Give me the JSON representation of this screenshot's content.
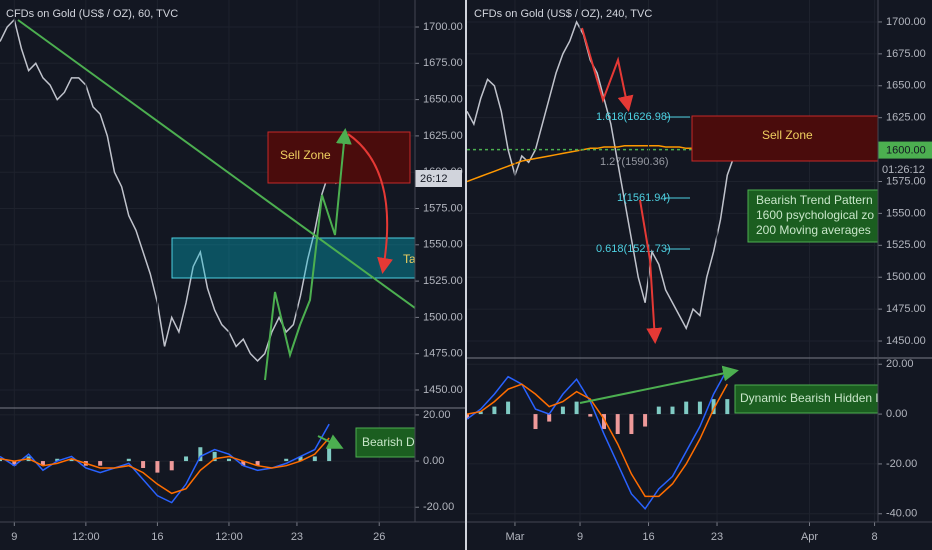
{
  "chart_data": [
    {
      "type": "line",
      "title": "CFDs on Gold (US$ / OZ), 60, TVC",
      "x": [
        0,
        1,
        2,
        3,
        4,
        5,
        6,
        7,
        8,
        9,
        10,
        11,
        12,
        13,
        14,
        15,
        16,
        17,
        18,
        19,
        20,
        21,
        22,
        23,
        24,
        25,
        26,
        27,
        28,
        29,
        30,
        31,
        32,
        33,
        34,
        35,
        36,
        37,
        38,
        39,
        40,
        41,
        42,
        43,
        44,
        45,
        46,
        47
      ],
      "series": [
        {
          "color": "#c0c3cc",
          "values": [
            1690,
            1700,
            1705,
            1685,
            1670,
            1675,
            1665,
            1660,
            1650,
            1655,
            1665,
            1665,
            1660,
            1645,
            1640,
            1625,
            1600,
            1590,
            1570,
            1560,
            1545,
            1530,
            1510,
            1480,
            1500,
            1490,
            1510,
            1535,
            1545,
            1520,
            1505,
            1495,
            1490,
            1480,
            1485,
            1475,
            1470,
            1475,
            1490,
            1500,
            1490,
            1495,
            1515,
            1540,
            1560,
            1585,
            1600,
            1592
          ]
        }
      ],
      "xlim": [
        0,
        58
      ],
      "ylim": [
        1437.6,
        1718.6
      ],
      "grid": true,
      "yticks": [
        {
          "value": 1450,
          "label": "1450.00"
        },
        {
          "value": 1475,
          "label": "1475.00"
        },
        {
          "value": 1500,
          "label": "1500.00"
        },
        {
          "value": 1525,
          "label": "1525.00"
        },
        {
          "value": 1550,
          "label": "1550.00"
        },
        {
          "value": 1575,
          "label": "1575.00"
        },
        {
          "value": 1600,
          "label": "1600.00"
        },
        {
          "value": 1625,
          "label": "1625.00"
        },
        {
          "value": 1650,
          "label": "1650.00"
        },
        {
          "value": 1675,
          "label": "1675.00"
        },
        {
          "value": 1700,
          "label": "1700.00"
        }
      ],
      "annotations": [
        "Sell Zone",
        "Ta",
        "26:12"
      ]
    },
    {
      "type": "macd",
      "x": [
        0,
        2,
        4,
        6,
        8,
        10,
        12,
        14,
        16,
        18,
        20,
        22,
        24,
        26,
        28,
        30,
        32,
        34,
        36,
        38,
        40,
        42,
        44,
        46
      ],
      "histogram": {
        "values": [
          1,
          -2,
          2,
          -2,
          1,
          1,
          -2,
          -2,
          0,
          1,
          -3,
          -5,
          -4,
          2,
          6,
          4,
          1,
          -2,
          -2,
          0,
          1,
          2,
          2,
          6
        ],
        "positive_color": "#80cbc4",
        "negative_color": "#ef9a9a"
      },
      "series": [
        {
          "color": "#2962ff",
          "values": [
            2,
            -2,
            3,
            -4,
            0,
            2,
            -3,
            -5,
            -3,
            -1,
            -8,
            -15,
            -18,
            -10,
            2,
            5,
            3,
            -2,
            -4,
            -3,
            -1,
            2,
            5,
            16
          ]
        },
        {
          "color": "#ff6d00",
          "values": [
            1,
            0,
            1,
            -2,
            -1,
            1,
            -1,
            -3,
            -3,
            -2,
            -5,
            -10,
            -14,
            -12,
            -4,
            1,
            2,
            0,
            -2,
            -3,
            -2,
            0,
            3,
            10
          ]
        }
      ],
      "xlim": [
        0,
        58
      ],
      "ylim": [
        -26.4,
        23
      ],
      "grid": true,
      "yticks": [
        {
          "value": -20,
          "label": "-20.00"
        },
        {
          "value": 0,
          "label": "0.00"
        },
        {
          "value": 20,
          "label": "20.00"
        }
      ],
      "xticks": [
        {
          "value": 2,
          "label": "9"
        },
        {
          "value": 12,
          "label": "12:00"
        },
        {
          "value": 22,
          "label": "16"
        },
        {
          "value": 32,
          "label": "12:00"
        },
        {
          "value": 41.5,
          "label": "23"
        },
        {
          "value": 53,
          "label": "26"
        }
      ],
      "annotations": [
        "Bearish D"
      ]
    },
    {
      "type": "line",
      "title": "CFDs on Gold (US$ / OZ), 240, TVC",
      "x": [
        0,
        1,
        2,
        3,
        4,
        5,
        6,
        7,
        8,
        9,
        10,
        11,
        12,
        13,
        14,
        15,
        16,
        17,
        18,
        19,
        20,
        21,
        22,
        23,
        24,
        25,
        26,
        27,
        28,
        29,
        30,
        31,
        32,
        33,
        34,
        35,
        36,
        37,
        38,
        39
      ],
      "series": [
        {
          "color": "#c0c3cc",
          "values": [
            1630,
            1620,
            1640,
            1655,
            1650,
            1630,
            1600,
            1580,
            1595,
            1590,
            1600,
            1620,
            1640,
            1660,
            1675,
            1685,
            1700,
            1690,
            1670,
            1660,
            1640,
            1620,
            1590,
            1560,
            1530,
            1500,
            1480,
            1520,
            1510,
            1490,
            1480,
            1470,
            1460,
            1475,
            1470,
            1500,
            1520,
            1545,
            1580,
            1595
          ]
        },
        {
          "color": "#ff9800",
          "values": [
            1575,
            1577,
            1579,
            1581,
            1583,
            1585,
            1587,
            1589,
            1591,
            1592,
            1593,
            1594,
            1595,
            1596,
            1597,
            1598,
            1599,
            1600,
            1601,
            1601,
            1602,
            1602,
            1602,
            1603,
            1603,
            1603,
            1603,
            1603,
            1603,
            1602,
            1602,
            1602,
            1601,
            1601,
            1601,
            1600,
            1600,
            1600,
            1599,
            1599
          ]
        }
      ],
      "xlim": [
        0,
        60
      ],
      "ylim": [
        1436.7,
        1717.2
      ],
      "grid": true,
      "price_line": {
        "value": 1600,
        "label": "1600.00",
        "color": "#4caf50"
      },
      "yticks": [
        {
          "value": 1450,
          "label": "1450.00"
        },
        {
          "value": 1475,
          "label": "1475.00"
        },
        {
          "value": 1500,
          "label": "1500.00"
        },
        {
          "value": 1525,
          "label": "1525.00"
        },
        {
          "value": 1550,
          "label": "1550.00"
        },
        {
          "value": 1575,
          "label": "1575.00"
        },
        {
          "value": 1625,
          "label": "1625.00"
        },
        {
          "value": 1650,
          "label": "1650.00"
        },
        {
          "value": 1675,
          "label": "1675.00"
        },
        {
          "value": 1700,
          "label": "1700.00"
        }
      ],
      "annotations": [
        "Sell Zone",
        "1.618(1626.98)",
        "1.27(1590.36)",
        "1(1561.94)",
        "0.618(1521.73)",
        "Bearish Trend Pattern",
        "1600 psychological zo",
        "200 Moving averages",
        "01:26:12"
      ]
    },
    {
      "type": "macd",
      "x": [
        0,
        2,
        4,
        6,
        8,
        10,
        12,
        14,
        16,
        18,
        20,
        22,
        24,
        26,
        28,
        30,
        32,
        34,
        36,
        38
      ],
      "histogram": {
        "values": [
          -2,
          1,
          3,
          5,
          0,
          -6,
          -3,
          3,
          5,
          -1,
          -6,
          -8,
          -8,
          -5,
          3,
          3,
          5,
          5,
          6,
          6
        ],
        "positive_color": "#80cbc4",
        "negative_color": "#ef9a9a"
      },
      "series": [
        {
          "color": "#2962ff",
          "values": [
            -2,
            2,
            8,
            15,
            12,
            2,
            0,
            8,
            14,
            5,
            -8,
            -20,
            -32,
            -38,
            -30,
            -25,
            -15,
            -5,
            8,
            18
          ]
        },
        {
          "color": "#ff6d00",
          "values": [
            0,
            1,
            5,
            10,
            12,
            8,
            3,
            5,
            9,
            6,
            -2,
            -12,
            -24,
            -33,
            -33,
            -28,
            -20,
            -10,
            2,
            12
          ]
        }
      ],
      "xlim": [
        0,
        60
      ],
      "ylim": [
        -43.3,
        22.5
      ],
      "grid": true,
      "yticks": [
        {
          "value": -40,
          "label": "-40.00"
        },
        {
          "value": -20,
          "label": "-20.00"
        },
        {
          "value": 0,
          "label": "0.00"
        },
        {
          "value": 20,
          "label": "20.00"
        }
      ],
      "xticks": [
        {
          "value": 7,
          "label": "Mar"
        },
        {
          "value": 16.5,
          "label": "9"
        },
        {
          "value": 26.5,
          "label": "16"
        },
        {
          "value": 36.5,
          "label": "23"
        },
        {
          "value": 50,
          "label": "Apr"
        },
        {
          "value": 59.5,
          "label": "8"
        }
      ],
      "annotations": [
        "Dynamic Bearish Hidden D"
      ]
    }
  ]
}
